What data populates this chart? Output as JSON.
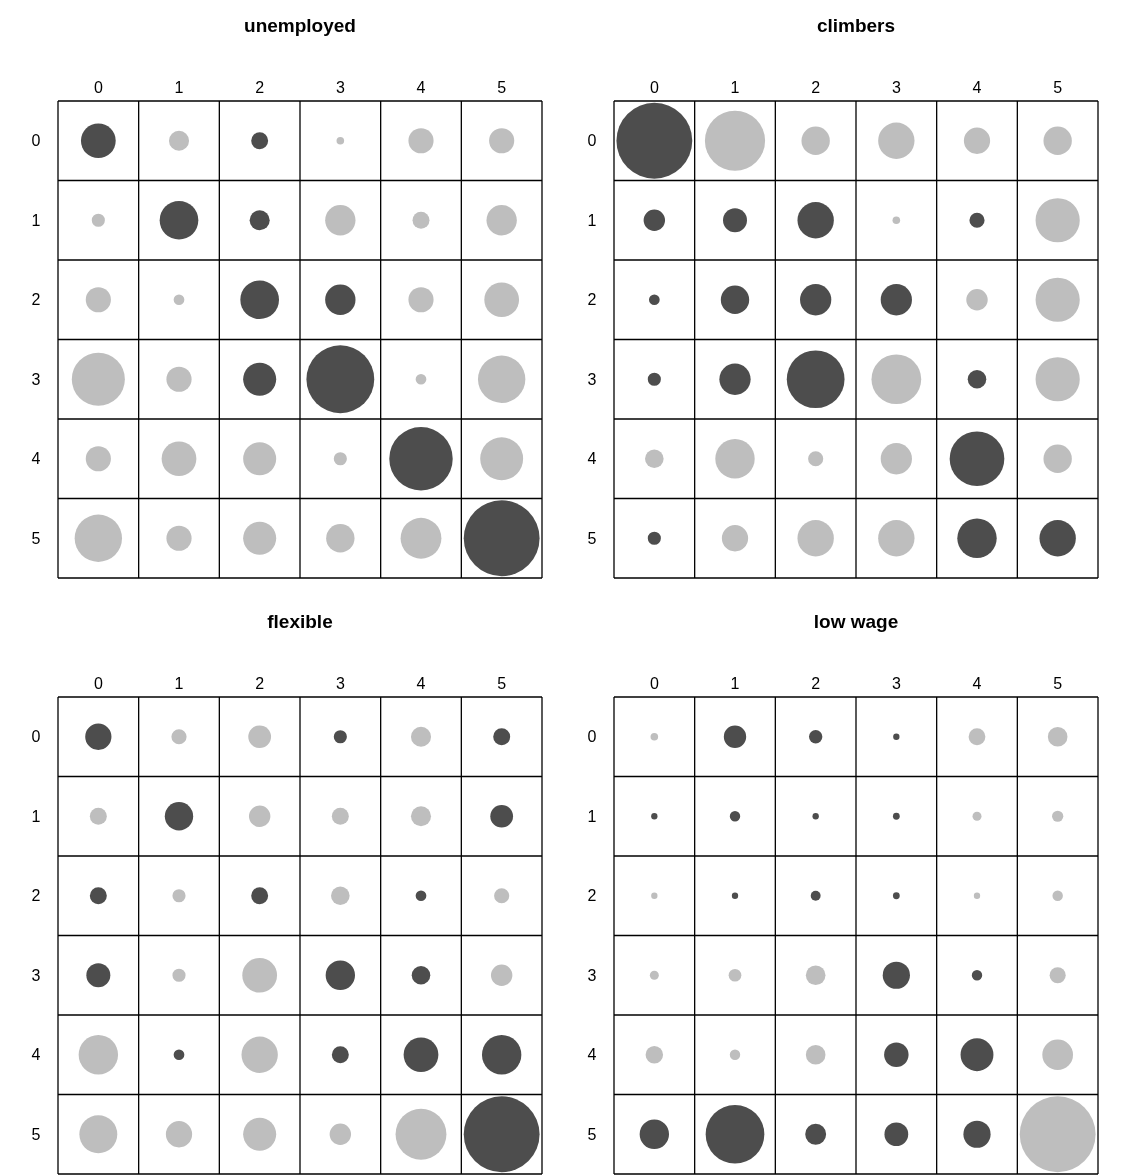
{
  "chart_data": [
    {
      "type": "bubble",
      "title": "unemployed",
      "xlim": [
        -0.5,
        5.5
      ],
      "xticks": [
        0,
        1,
        2,
        3,
        4,
        5
      ],
      "ylim": [
        5.5,
        -0.5
      ],
      "yticks": [
        0,
        1,
        2,
        3,
        4,
        5
      ],
      "grid": true,
      "x": [
        0,
        1,
        2,
        3,
        4,
        5,
        0,
        1,
        2,
        3,
        4,
        5,
        0,
        1,
        2,
        3,
        4,
        5,
        0,
        1,
        2,
        3,
        4,
        5,
        0,
        1,
        2,
        3,
        4,
        5,
        0,
        1,
        2,
        3,
        4,
        5
      ],
      "values": [
        0,
        0,
        0,
        0,
        0,
        0,
        1,
        1,
        1,
        1,
        1,
        1,
        2,
        2,
        2,
        2,
        2,
        2,
        3,
        3,
        3,
        3,
        3,
        3,
        4,
        4,
        4,
        4,
        4,
        4,
        5,
        5,
        5,
        5,
        5,
        5
      ],
      "sizes": [
        0.21,
        0.07,
        0.05,
        0.01,
        0.11,
        0.11,
        0.03,
        0.26,
        0.07,
        0.16,
        0.05,
        0.16,
        0.11,
        0.02,
        0.26,
        0.16,
        0.11,
        0.21,
        0.49,
        0.11,
        0.19,
        0.8,
        0.02,
        0.39,
        0.11,
        0.21,
        0.19,
        0.03,
        0.7,
        0.32,
        0.39,
        0.11,
        0.19,
        0.14,
        0.29,
        1
      ],
      "colors": [
        "#4d4d4d",
        "#bebebe",
        "#4d4d4d",
        "#bebebe",
        "#bebebe",
        "#bebebe",
        "#bebebe",
        "#4d4d4d",
        "#4d4d4d",
        "#bebebe",
        "#bebebe",
        "#bebebe",
        "#bebebe",
        "#bebebe",
        "#4d4d4d",
        "#4d4d4d",
        "#bebebe",
        "#bebebe",
        "#bebebe",
        "#bebebe",
        "#4d4d4d",
        "#4d4d4d",
        "#bebebe",
        "#bebebe",
        "#bebebe",
        "#bebebe",
        "#bebebe",
        "#bebebe",
        "#4d4d4d",
        "#bebebe",
        "#bebebe",
        "#bebebe",
        "#bebebe",
        "#bebebe",
        "#bebebe",
        "#4d4d4d"
      ]
    },
    {
      "type": "bubble",
      "title": "climbers",
      "xlim": [
        -0.5,
        5.5
      ],
      "xticks": [
        0,
        1,
        2,
        3,
        4,
        5
      ],
      "ylim": [
        5.5,
        -0.5
      ],
      "yticks": [
        0,
        1,
        2,
        3,
        4,
        5
      ],
      "grid": true,
      "x": [
        0,
        1,
        2,
        3,
        4,
        5,
        0,
        1,
        2,
        3,
        4,
        5,
        0,
        1,
        2,
        3,
        4,
        5,
        0,
        1,
        2,
        3,
        4,
        5,
        0,
        1,
        2,
        3,
        4,
        5,
        0,
        1,
        2,
        3,
        4,
        5
      ],
      "values": [
        0,
        0,
        0,
        0,
        0,
        0,
        1,
        1,
        1,
        1,
        1,
        1,
        2,
        2,
        2,
        2,
        2,
        2,
        3,
        3,
        3,
        3,
        3,
        3,
        4,
        4,
        4,
        4,
        4,
        4,
        5,
        5,
        5,
        5,
        5,
        5
      ],
      "sizes": [
        1,
        0.63,
        0.14,
        0.23,
        0.12,
        0.14,
        0.08,
        0.1,
        0.23,
        0.01,
        0.04,
        0.34,
        0.02,
        0.14,
        0.17,
        0.17,
        0.08,
        0.34,
        0.03,
        0.17,
        0.58,
        0.43,
        0.06,
        0.34,
        0.06,
        0.27,
        0.04,
        0.17,
        0.52,
        0.14,
        0.03,
        0.12,
        0.23,
        0.23,
        0.27,
        0.23
      ],
      "colors": [
        "#4d4d4d",
        "#bebebe",
        "#bebebe",
        "#bebebe",
        "#bebebe",
        "#bebebe",
        "#4d4d4d",
        "#4d4d4d",
        "#4d4d4d",
        "#bebebe",
        "#4d4d4d",
        "#bebebe",
        "#4d4d4d",
        "#4d4d4d",
        "#4d4d4d",
        "#4d4d4d",
        "#bebebe",
        "#bebebe",
        "#4d4d4d",
        "#4d4d4d",
        "#4d4d4d",
        "#bebebe",
        "#4d4d4d",
        "#bebebe",
        "#bebebe",
        "#bebebe",
        "#bebebe",
        "#bebebe",
        "#4d4d4d",
        "#bebebe",
        "#4d4d4d",
        "#bebebe",
        "#bebebe",
        "#bebebe",
        "#4d4d4d",
        "#4d4d4d"
      ]
    },
    {
      "type": "bubble",
      "title": "flexible",
      "xlim": [
        -0.5,
        5.5
      ],
      "xticks": [
        0,
        1,
        2,
        3,
        4,
        5
      ],
      "ylim": [
        5.5,
        -0.5
      ],
      "yticks": [
        0,
        1,
        2,
        3,
        4,
        5
      ],
      "grid": true,
      "x": [
        0,
        1,
        2,
        3,
        4,
        5,
        0,
        1,
        2,
        3,
        4,
        5,
        0,
        1,
        2,
        3,
        4,
        5,
        0,
        1,
        2,
        3,
        4,
        5,
        0,
        1,
        2,
        3,
        4,
        5,
        0,
        1,
        2,
        3,
        4,
        5
      ],
      "values": [
        0,
        0,
        0,
        0,
        0,
        0,
        1,
        1,
        1,
        1,
        1,
        1,
        2,
        2,
        2,
        2,
        2,
        2,
        3,
        3,
        3,
        3,
        3,
        3,
        4,
        4,
        4,
        4,
        4,
        4,
        5,
        5,
        5,
        5,
        5,
        5
      ],
      "sizes": [
        0.12,
        0.04,
        0.09,
        0.03,
        0.07,
        0.05,
        0.05,
        0.14,
        0.08,
        0.05,
        0.07,
        0.09,
        0.05,
        0.03,
        0.05,
        0.06,
        0.02,
        0.04,
        0.1,
        0.03,
        0.21,
        0.15,
        0.06,
        0.08,
        0.27,
        0.02,
        0.23,
        0.05,
        0.21,
        0.27,
        0.25,
        0.12,
        0.19,
        0.08,
        0.45,
        1
      ],
      "colors": [
        "#4d4d4d",
        "#bebebe",
        "#bebebe",
        "#4d4d4d",
        "#bebebe",
        "#4d4d4d",
        "#bebebe",
        "#4d4d4d",
        "#bebebe",
        "#bebebe",
        "#bebebe",
        "#4d4d4d",
        "#4d4d4d",
        "#bebebe",
        "#4d4d4d",
        "#bebebe",
        "#4d4d4d",
        "#bebebe",
        "#4d4d4d",
        "#bebebe",
        "#bebebe",
        "#4d4d4d",
        "#4d4d4d",
        "#bebebe",
        "#bebebe",
        "#4d4d4d",
        "#bebebe",
        "#4d4d4d",
        "#4d4d4d",
        "#4d4d4d",
        "#bebebe",
        "#bebebe",
        "#bebebe",
        "#bebebe",
        "#bebebe",
        "#4d4d4d"
      ]
    },
    {
      "type": "bubble",
      "title": "low wage",
      "xlim": [
        -0.5,
        5.5
      ],
      "xticks": [
        0,
        1,
        2,
        3,
        4,
        5
      ],
      "ylim": [
        5.5,
        -0.5
      ],
      "yticks": [
        0,
        1,
        2,
        3,
        4,
        5
      ],
      "grid": true,
      "x": [
        0,
        1,
        2,
        3,
        4,
        5,
        0,
        1,
        2,
        3,
        4,
        5,
        0,
        1,
        2,
        3,
        4,
        5,
        0,
        1,
        2,
        3,
        4,
        5,
        0,
        1,
        2,
        3,
        4,
        5,
        0,
        1,
        2,
        3,
        4,
        5
      ],
      "values": [
        0,
        0,
        0,
        0,
        0,
        0,
        1,
        1,
        1,
        1,
        1,
        1,
        2,
        2,
        2,
        2,
        2,
        2,
        3,
        3,
        3,
        3,
        3,
        3,
        4,
        4,
        4,
        4,
        4,
        4,
        5,
        5,
        5,
        5,
        5,
        5
      ],
      "sizes": [
        0.01,
        0.087,
        0.031,
        0.007,
        0.049,
        0.067,
        0.007,
        0.019,
        0.007,
        0.008,
        0.014,
        0.022,
        0.007,
        0.007,
        0.017,
        0.008,
        0.007,
        0.019,
        0.014,
        0.028,
        0.067,
        0.129,
        0.019,
        0.045,
        0.053,
        0.019,
        0.067,
        0.104,
        0.188,
        0.164,
        0.15,
        0.599,
        0.076,
        0.098,
        0.129,
        1
      ],
      "colors": [
        "#bebebe",
        "#4d4d4d",
        "#4d4d4d",
        "#4d4d4d",
        "#bebebe",
        "#bebebe",
        "#4d4d4d",
        "#4d4d4d",
        "#4d4d4d",
        "#4d4d4d",
        "#bebebe",
        "#bebebe",
        "#bebebe",
        "#4d4d4d",
        "#4d4d4d",
        "#4d4d4d",
        "#bebebe",
        "#bebebe",
        "#bebebe",
        "#bebebe",
        "#bebebe",
        "#4d4d4d",
        "#4d4d4d",
        "#bebebe",
        "#bebebe",
        "#bebebe",
        "#bebebe",
        "#4d4d4d",
        "#4d4d4d",
        "#bebebe",
        "#4d4d4d",
        "#4d4d4d",
        "#4d4d4d",
        "#4d4d4d",
        "#4d4d4d",
        "#bebebe"
      ]
    }
  ]
}
